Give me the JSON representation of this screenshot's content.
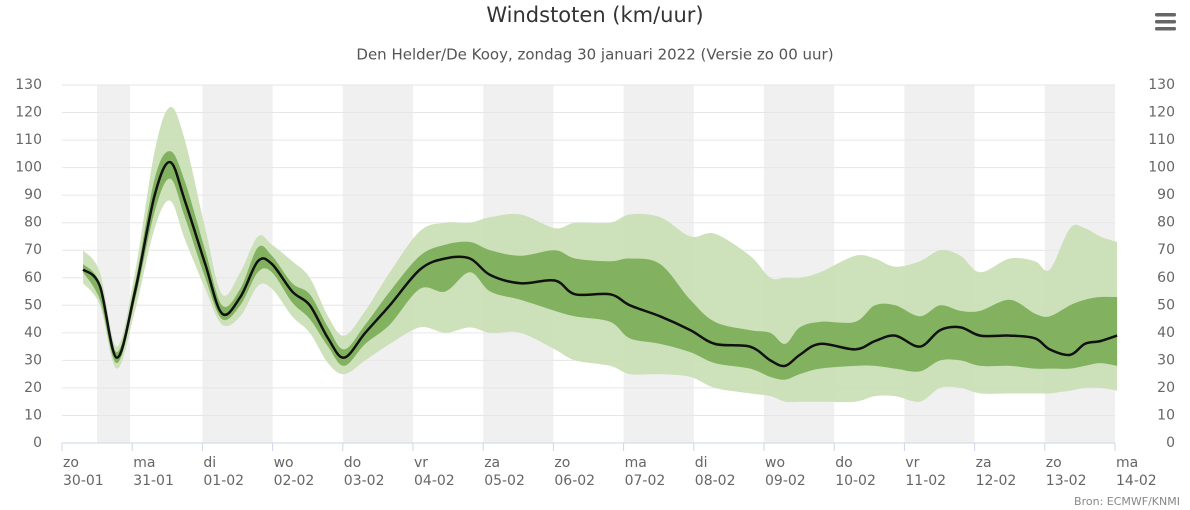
{
  "chart_data": {
    "type": "arearange-line",
    "title": "Windstoten (km/uur)",
    "subtitle": "Den Helder/De Kooy, zondag 30 januari 2022 (Versie zo 00 uur)",
    "credit": "Bron: ECMWF/KNMI",
    "x": [
      0.3,
      0.54,
      0.78,
      1.04,
      1.32,
      1.54,
      1.75,
      2.04,
      2.28,
      2.54,
      2.79,
      2.99,
      3.28,
      3.53,
      3.79,
      4.02,
      4.32,
      4.67,
      5.1,
      5.46,
      5.81,
      6.1,
      6.53,
      7.02,
      7.31,
      7.81,
      8.09,
      8.52,
      8.95,
      9.3,
      9.8,
      10.09,
      10.3,
      10.51,
      10.8,
      11.3,
      11.58,
      11.87,
      12.22,
      12.51,
      12.8,
      13.08,
      13.5,
      13.86,
      14.07,
      14.36,
      14.57,
      14.79,
      15.03
    ],
    "bands": [
      {
        "color": "#c8dfb4",
        "low": [
          58,
          50,
          27,
          48,
          78,
          88,
          74,
          56,
          43,
          46,
          57,
          56,
          46,
          40,
          29,
          25,
          30,
          36,
          42,
          40,
          42,
          40,
          40,
          34,
          30,
          28,
          25,
          25,
          24,
          20,
          18,
          17,
          15,
          15,
          15,
          15,
          17,
          17,
          15,
          20,
          20,
          18,
          18,
          18,
          18,
          19,
          20,
          20,
          19
        ],
        "high": [
          70,
          62,
          35,
          62,
          106,
          122,
          110,
          78,
          54,
          62,
          75,
          72,
          66,
          60,
          46,
          39,
          48,
          62,
          77,
          80,
          80,
          82,
          83,
          78,
          80,
          80,
          83,
          82,
          75,
          76,
          68,
          60,
          60,
          60,
          62,
          68,
          67,
          64,
          66,
          70,
          68,
          62,
          67,
          66,
          63,
          78,
          78,
          75,
          73
        ]
      },
      {
        "color": "#7aad57",
        "low": [
          62,
          52,
          29,
          52,
          84,
          96,
          82,
          60,
          45,
          50,
          62,
          62,
          51,
          45,
          35,
          28,
          36,
          43,
          56,
          55,
          62,
          55,
          52,
          48,
          46,
          44,
          38,
          36,
          33,
          29,
          27,
          24,
          23,
          25,
          27,
          28,
          28,
          27,
          26,
          30,
          30,
          28,
          28,
          27,
          27,
          27,
          28,
          29,
          28
        ],
        "high": [
          65,
          58,
          33,
          58,
          96,
          106,
          95,
          70,
          50,
          56,
          71,
          68,
          58,
          54,
          42,
          34,
          43,
          55,
          68,
          72,
          73,
          70,
          68,
          70,
          67,
          66,
          67,
          65,
          52,
          44,
          41,
          40,
          36,
          42,
          44,
          44,
          50,
          50,
          46,
          50,
          48,
          48,
          52,
          47,
          46,
          50,
          52,
          53,
          53
        ]
      }
    ],
    "median": {
      "color": "#111111",
      "values": [
        63,
        57,
        31,
        55,
        90,
        102,
        88,
        65,
        47,
        53,
        66,
        65,
        55,
        50,
        38,
        31,
        40,
        50,
        63,
        67,
        67,
        61,
        58,
        59,
        54,
        54,
        50,
        46,
        41,
        36,
        35,
        30,
        28,
        32,
        36,
        34,
        37,
        39,
        35,
        41,
        42,
        39,
        39,
        38,
        34,
        32,
        36,
        37,
        39
      ]
    },
    "xlim": [
      0,
      15
    ],
    "xticks": [
      {
        "value": 0,
        "label": "zo",
        "date": "30-01"
      },
      {
        "value": 1,
        "label": "ma",
        "date": "31-01"
      },
      {
        "value": 2,
        "label": "di",
        "date": "01-02"
      },
      {
        "value": 3,
        "label": "wo",
        "date": "02-02"
      },
      {
        "value": 4,
        "label": "do",
        "date": "03-02"
      },
      {
        "value": 5,
        "label": "vr",
        "date": "04-02"
      },
      {
        "value": 6,
        "label": "za",
        "date": "05-02"
      },
      {
        "value": 7,
        "label": "zo",
        "date": "06-02"
      },
      {
        "value": 8,
        "label": "ma",
        "date": "07-02"
      },
      {
        "value": 9,
        "label": "di",
        "date": "08-02"
      },
      {
        "value": 10,
        "label": "wo",
        "date": "09-02"
      },
      {
        "value": 11,
        "label": "do",
        "date": "10-02"
      },
      {
        "value": 12,
        "label": "vr",
        "date": "11-02"
      },
      {
        "value": 13,
        "label": "za",
        "date": "12-02"
      },
      {
        "value": 14,
        "label": "zo",
        "date": "13-02"
      },
      {
        "value": 15,
        "label": "ma",
        "date": "14-02"
      }
    ],
    "ylim": [
      0,
      130
    ],
    "yticks": [
      0,
      10,
      20,
      30,
      40,
      50,
      60,
      70,
      80,
      90,
      100,
      110,
      120,
      130
    ],
    "y2lim": [
      0,
      130
    ],
    "y2ticks": [
      0,
      10,
      20,
      30,
      40,
      50,
      60,
      70,
      80,
      90,
      100,
      110,
      120,
      130
    ],
    "grid": true
  }
}
